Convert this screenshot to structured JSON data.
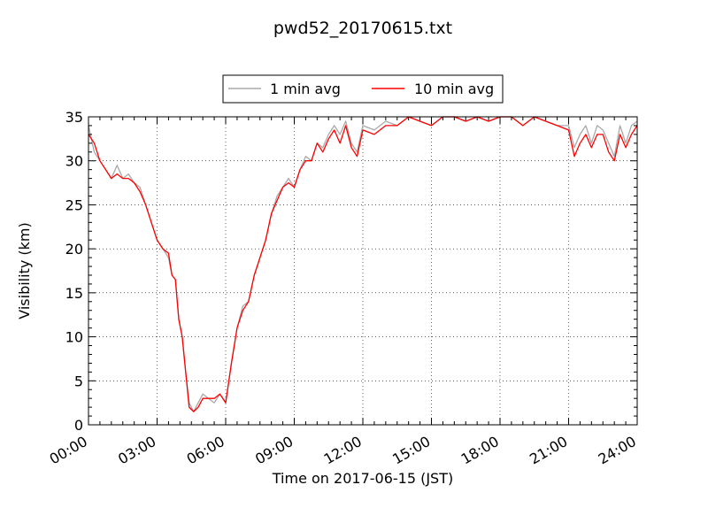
{
  "chart_data": {
    "type": "line",
    "title": "pwd52_20170615.txt",
    "xlabel": "Time on 2017-06-15 (JST)",
    "ylabel": "Visibility (km)",
    "xlim": [
      0,
      24
    ],
    "ylim": [
      0,
      35
    ],
    "x_ticks": [
      0,
      3,
      6,
      9,
      12,
      15,
      18,
      21,
      24
    ],
    "x_tick_labels": [
      "00:00",
      "03:00",
      "06:00",
      "09:00",
      "12:00",
      "15:00",
      "18:00",
      "21:00",
      "24:00"
    ],
    "y_ticks": [
      0,
      5,
      10,
      15,
      20,
      25,
      30,
      35
    ],
    "y_tick_labels": [
      "0",
      "5",
      "10",
      "15",
      "20",
      "25",
      "30",
      "35"
    ],
    "grid": true,
    "legend_position": "top-center",
    "series": [
      {
        "name": "1 min avg",
        "color": "#a9a9a9",
        "x": [
          0.0,
          0.25,
          0.5,
          0.75,
          1.0,
          1.25,
          1.5,
          1.75,
          2.0,
          2.25,
          2.5,
          2.75,
          3.0,
          3.25,
          3.5,
          3.65,
          3.8,
          3.95,
          4.1,
          4.25,
          4.4,
          4.6,
          4.8,
          5.0,
          5.25,
          5.5,
          5.75,
          6.0,
          6.25,
          6.5,
          6.75,
          7.0,
          7.25,
          7.5,
          7.75,
          8.0,
          8.25,
          8.5,
          8.75,
          9.0,
          9.25,
          9.5,
          9.75,
          10.0,
          10.25,
          10.5,
          10.75,
          11.0,
          11.25,
          11.5,
          11.75,
          12.0,
          12.5,
          13.0,
          13.5,
          14.0,
          14.5,
          15.0,
          15.5,
          16.0,
          16.5,
          17.0,
          17.5,
          18.0,
          18.5,
          19.0,
          19.5,
          20.0,
          20.5,
          21.0,
          21.25,
          21.5,
          21.75,
          22.0,
          22.25,
          22.5,
          22.75,
          23.0,
          23.25,
          23.5,
          23.75,
          24.0
        ],
        "values": [
          34.0,
          31.0,
          30.0,
          29.0,
          28.0,
          29.5,
          28.0,
          28.5,
          27.5,
          27.0,
          25.0,
          23.0,
          21.0,
          20.0,
          19.0,
          17.0,
          16.5,
          12.0,
          10.0,
          6.0,
          2.5,
          1.5,
          2.5,
          3.5,
          3.0,
          2.5,
          3.5,
          2.5,
          7.0,
          11.0,
          13.5,
          14.0,
          17.0,
          19.0,
          21.0,
          24.0,
          26.0,
          27.0,
          28.0,
          27.0,
          29.0,
          30.5,
          30.0,
          32.0,
          31.5,
          33.0,
          34.0,
          33.0,
          34.5,
          32.0,
          31.0,
          34.0,
          33.5,
          34.5,
          34.0,
          35.0,
          34.5,
          34.0,
          35.0,
          35.0,
          34.5,
          35.0,
          34.5,
          35.0,
          35.0,
          34.0,
          35.0,
          34.5,
          34.0,
          34.0,
          31.5,
          33.0,
          34.0,
          32.0,
          34.0,
          33.5,
          32.0,
          30.5,
          34.0,
          32.0,
          34.0,
          34.5
        ]
      },
      {
        "name": "10 min avg",
        "color": "#ff0000",
        "x": [
          0.0,
          0.25,
          0.5,
          0.75,
          1.0,
          1.25,
          1.5,
          1.75,
          2.0,
          2.25,
          2.5,
          2.75,
          3.0,
          3.25,
          3.5,
          3.65,
          3.8,
          3.95,
          4.1,
          4.25,
          4.4,
          4.6,
          4.8,
          5.0,
          5.25,
          5.5,
          5.75,
          6.0,
          6.25,
          6.5,
          6.75,
          7.0,
          7.25,
          7.5,
          7.75,
          8.0,
          8.25,
          8.5,
          8.75,
          9.0,
          9.25,
          9.5,
          9.75,
          10.0,
          10.25,
          10.5,
          10.75,
          11.0,
          11.25,
          11.5,
          11.75,
          12.0,
          12.5,
          13.0,
          13.5,
          14.0,
          14.5,
          15.0,
          15.5,
          16.0,
          16.5,
          17.0,
          17.5,
          18.0,
          18.5,
          19.0,
          19.5,
          20.0,
          20.5,
          21.0,
          21.25,
          21.5,
          21.75,
          22.0,
          22.25,
          22.5,
          22.75,
          23.0,
          23.25,
          23.5,
          23.75,
          24.0
        ],
        "values": [
          33.0,
          32.0,
          30.0,
          29.0,
          28.0,
          28.5,
          28.0,
          28.0,
          27.5,
          26.5,
          25.0,
          23.0,
          21.0,
          20.0,
          19.5,
          17.0,
          16.5,
          12.0,
          10.0,
          6.0,
          2.0,
          1.5,
          2.0,
          3.0,
          3.0,
          3.0,
          3.5,
          2.5,
          7.0,
          11.0,
          13.0,
          14.0,
          17.0,
          19.0,
          21.0,
          24.0,
          25.5,
          27.0,
          27.5,
          27.0,
          29.0,
          30.0,
          30.0,
          32.0,
          31.0,
          32.5,
          33.5,
          32.0,
          34.0,
          31.5,
          30.5,
          33.5,
          33.0,
          34.0,
          34.0,
          35.0,
          34.5,
          34.0,
          35.0,
          35.0,
          34.5,
          35.0,
          34.5,
          35.0,
          35.0,
          34.0,
          35.0,
          34.5,
          34.0,
          33.5,
          30.5,
          32.0,
          33.0,
          31.5,
          33.0,
          33.0,
          31.0,
          30.0,
          33.0,
          31.5,
          33.0,
          34.0
        ]
      }
    ]
  }
}
